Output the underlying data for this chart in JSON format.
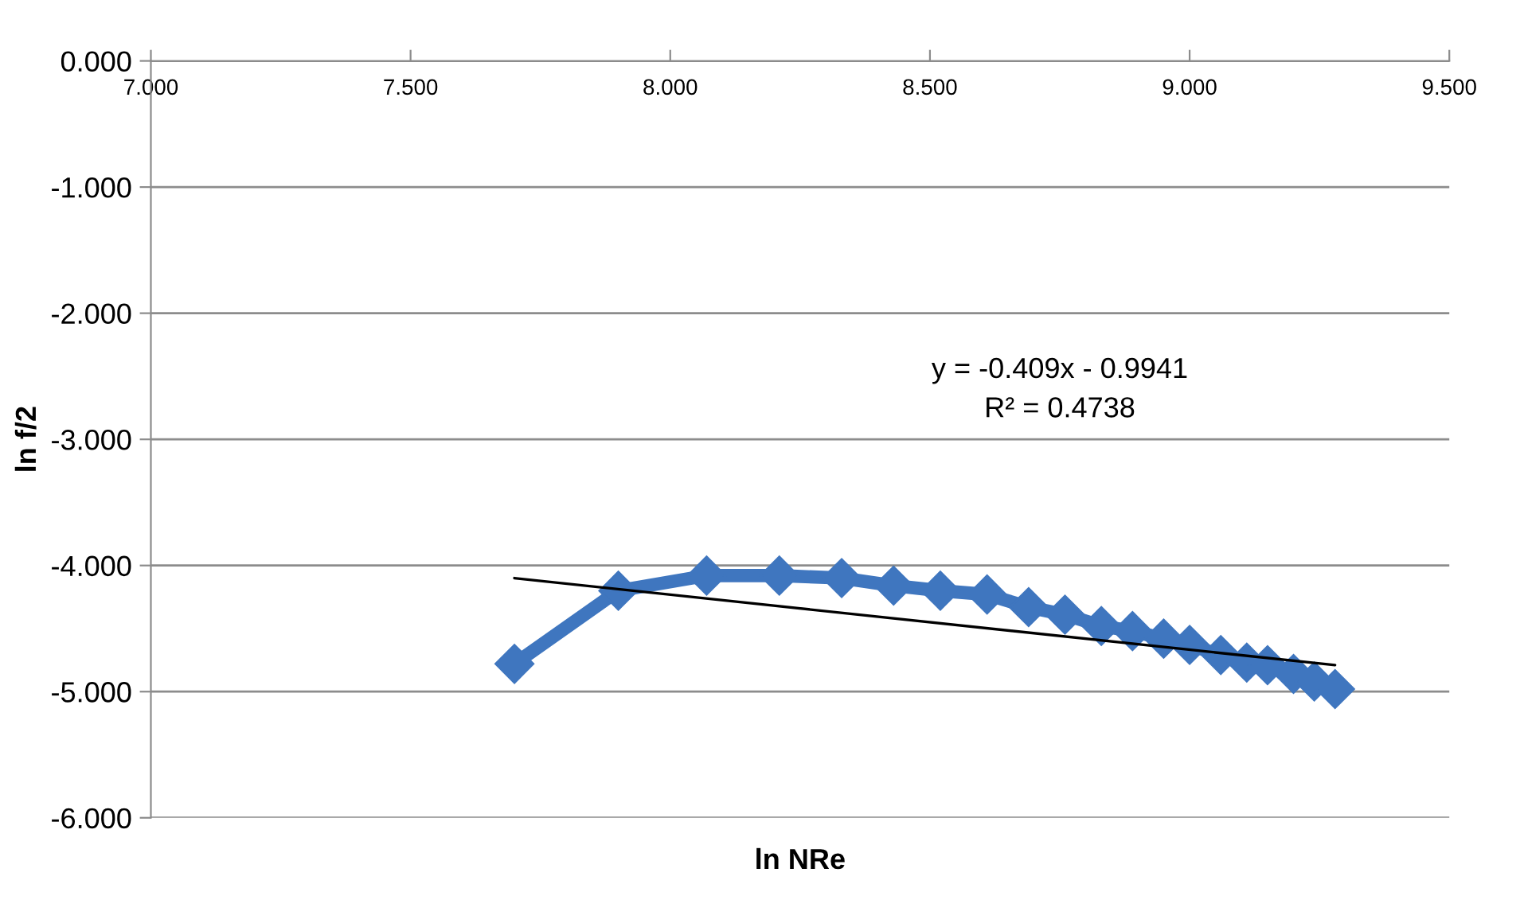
{
  "chart_data": {
    "type": "line",
    "xlabel": "ln NRe",
    "ylabel": "ln f/2",
    "xlim": [
      7.0,
      9.5
    ],
    "xticks": [
      {
        "value": 7.0,
        "label": "7.000"
      },
      {
        "value": 7.5,
        "label": "7.500"
      },
      {
        "value": 8.0,
        "label": "8.000"
      },
      {
        "value": 8.5,
        "label": "8.500"
      },
      {
        "value": 9.0,
        "label": "9.000"
      },
      {
        "value": 9.5,
        "label": "9.500"
      }
    ],
    "ylim": [
      -6.0,
      0.0
    ],
    "yticks": [
      {
        "value": 0,
        "label": "0.000"
      },
      {
        "value": -1,
        "label": "-1.000"
      },
      {
        "value": -2,
        "label": "-2.000"
      },
      {
        "value": -3,
        "label": "-3.000"
      },
      {
        "value": -4,
        "label": "-4.000"
      },
      {
        "value": -5,
        "label": "-5.000"
      },
      {
        "value": -6,
        "label": "-6.000"
      }
    ],
    "grid": "y",
    "marker": "diamond",
    "series": [
      {
        "color": "#3f76bf",
        "x": [
          7.7,
          7.9,
          8.07,
          8.21,
          8.33,
          8.43,
          8.52,
          8.61,
          8.69,
          8.76,
          8.83,
          8.89,
          8.95,
          9.0,
          9.06,
          9.11,
          9.15,
          9.2,
          9.24,
          9.28
        ],
        "values": [
          -4.78,
          -4.2,
          -4.08,
          -4.08,
          -4.1,
          -4.16,
          -4.2,
          -4.23,
          -4.33,
          -4.39,
          -4.48,
          -4.52,
          -4.58,
          -4.63,
          -4.71,
          -4.77,
          -4.79,
          -4.86,
          -4.92,
          -4.98
        ]
      },
      {
        "type": "line",
        "color": "#000000",
        "marker": "none",
        "x": [
          7.7,
          9.28
        ],
        "values": [
          -4.1,
          -4.79
        ]
      }
    ],
    "annotations": [
      "y = -0.409x - 0.9941\nR² = 0.4738"
    ]
  }
}
